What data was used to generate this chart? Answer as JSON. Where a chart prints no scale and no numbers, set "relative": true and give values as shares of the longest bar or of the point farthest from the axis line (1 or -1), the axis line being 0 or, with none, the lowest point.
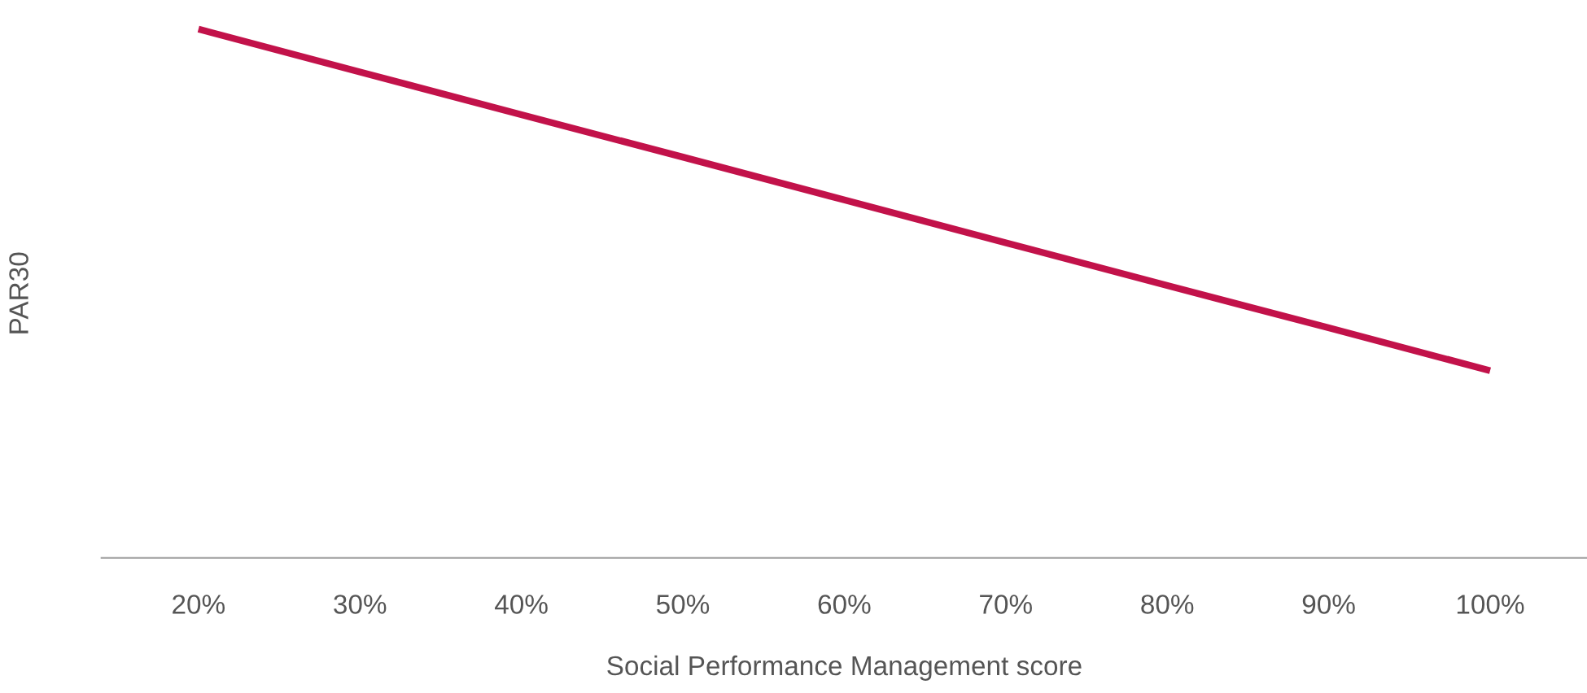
{
  "chart_data": {
    "type": "line",
    "relative": true,
    "xlabel": "Social Performance Management score",
    "ylabel": "PAR30",
    "categories": [
      "20%",
      "30%",
      "40%",
      "50%",
      "60%",
      "70%",
      "80%",
      "90%",
      "100%"
    ],
    "series": [
      {
        "color": "#c2124a",
        "values": [
          1,
          0.919,
          0.838,
          0.758,
          0.677,
          0.596,
          0.515,
          0.435,
          0.354
        ]
      }
    ],
    "grid": false,
    "legend": false,
    "marker": "none",
    "line_style": "solid"
  }
}
